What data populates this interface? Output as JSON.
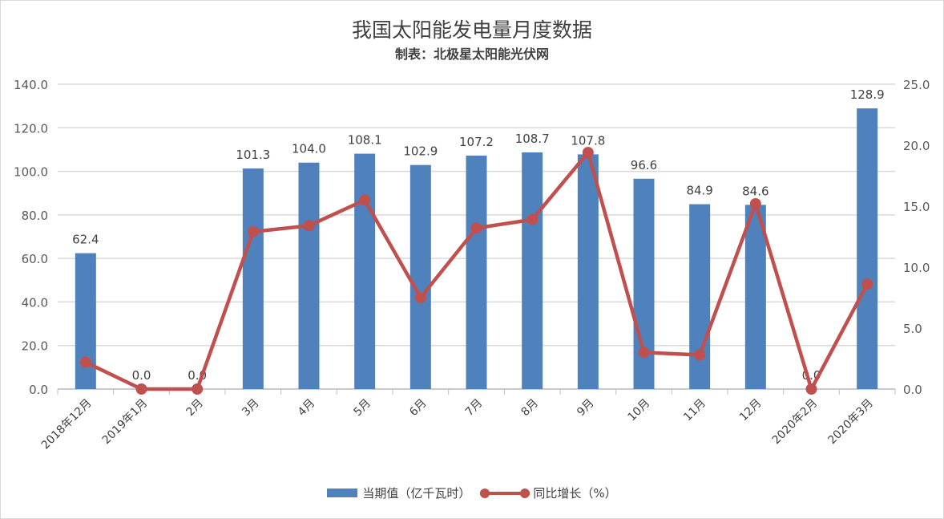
{
  "chart_data": {
    "type": "bar+line",
    "title": "我国太阳能发电量月度数据",
    "subtitle": "制表：北极星太阳能光伏网",
    "categories": [
      "2018年12月",
      "2019年1月",
      "2月",
      "3月",
      "4月",
      "5月",
      "6月",
      "7月",
      "8月",
      "9月",
      "10月",
      "11月",
      "12月",
      "2020年2月",
      "2020年3月"
    ],
    "series": [
      {
        "name": "当期值（亿千瓦时）",
        "type": "bar",
        "axis": "left",
        "color": "#4f81bd",
        "values": [
          62.4,
          0.0,
          0.0,
          101.3,
          104.0,
          108.1,
          102.9,
          107.2,
          108.7,
          107.8,
          96.6,
          84.9,
          84.6,
          0.0,
          128.9
        ]
      },
      {
        "name": "同比增长（%）",
        "type": "line",
        "axis": "right",
        "color": "#c0504d",
        "values": [
          2.2,
          0.0,
          0.0,
          12.9,
          13.4,
          15.5,
          7.5,
          13.2,
          13.9,
          19.4,
          3.0,
          2.8,
          15.2,
          0.0,
          8.6
        ]
      }
    ],
    "left_axis": {
      "min": 0,
      "max": 140,
      "ticks": [
        "0.0",
        "20.0",
        "40.0",
        "60.0",
        "80.0",
        "100.0",
        "120.0",
        "140.0"
      ]
    },
    "right_axis": {
      "min": 0,
      "max": 25,
      "ticks": [
        "0.0",
        "5.0",
        "10.0",
        "15.0",
        "20.0",
        "25.0"
      ]
    },
    "grid": true,
    "legend": "bottom"
  }
}
